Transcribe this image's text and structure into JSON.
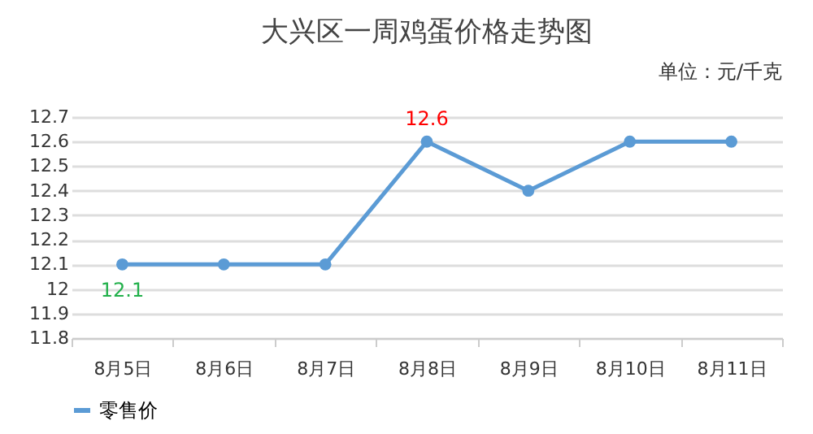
{
  "chart_data": {
    "type": "line",
    "title": "大兴区一周鸡蛋价格走势图",
    "annotations": [
      "单位：元/千克"
    ],
    "categories": [
      "8月5日",
      "8月6日",
      "8月7日",
      "8月8日",
      "8月9日",
      "8月10日",
      "8月11日"
    ],
    "series": [
      {
        "name": "零售价",
        "color": "#5b9bd5",
        "values": [
          12.1,
          12.1,
          12.1,
          12.6,
          12.4,
          12.6,
          12.6
        ],
        "value_labels": [
          "12.1",
          null,
          null,
          "12.6",
          null,
          null,
          null
        ]
      }
    ],
    "ylim": [
      11.8,
      12.7
    ],
    "yticks": [
      11.8,
      11.9,
      12,
      12.1,
      12.2,
      12.3,
      12.4,
      12.5,
      12.6,
      12.7
    ],
    "grid": "y",
    "legend": "bottom",
    "marker": "circle",
    "line_style": "solid"
  }
}
